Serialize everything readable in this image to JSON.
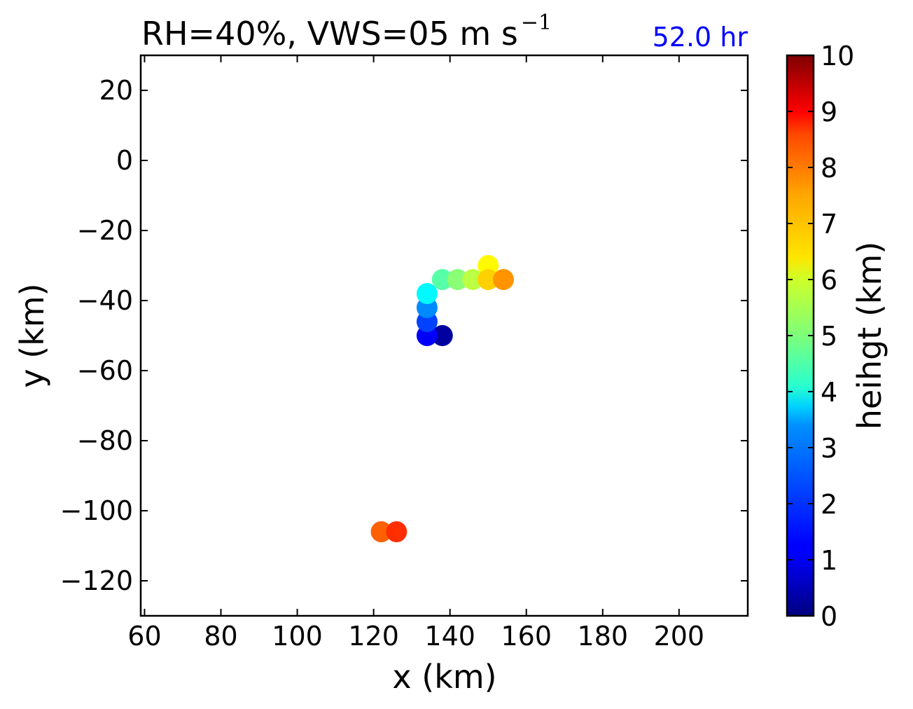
{
  "chart_data": {
    "type": "scatter",
    "title_main": "RH=40%, VWS=05 m s",
    "title_superscript": "−1",
    "time_label": "52.0 hr",
    "xlabel": "x (km)",
    "ylabel": "y (km)",
    "xlim": [
      59,
      218
    ],
    "ylim": [
      -130,
      30
    ],
    "xticks": [
      60,
      80,
      100,
      120,
      140,
      160,
      180,
      200
    ],
    "yticks": [
      20,
      0,
      -20,
      -40,
      -60,
      -80,
      -100,
      -120
    ],
    "xtick_labels": [
      "60",
      "80",
      "100",
      "120",
      "140",
      "160",
      "180",
      "200"
    ],
    "ytick_labels": [
      "20",
      "0",
      "−20",
      "−40",
      "−60",
      "−80",
      "−100",
      "−120"
    ],
    "colorbar": {
      "label": "heihgt (km)",
      "colormap": "jet",
      "range": [
        0,
        10
      ],
      "ticks": [
        0,
        1,
        2,
        3,
        4,
        5,
        6,
        7,
        8,
        9,
        10
      ],
      "tick_labels": [
        "0",
        "1",
        "2",
        "3",
        "4",
        "5",
        "6",
        "7",
        "8",
        "9",
        "10"
      ]
    },
    "points": [
      {
        "x": 122,
        "y": -106,
        "z": 7.8
      },
      {
        "x": 126,
        "y": -106,
        "z": 8.3
      },
      {
        "x": 138,
        "y": -50,
        "z": 0.3
      },
      {
        "x": 134,
        "y": -50,
        "z": 1.2
      },
      {
        "x": 134,
        "y": -46,
        "z": 1.9
      },
      {
        "x": 134,
        "y": -42,
        "z": 2.6
      },
      {
        "x": 134,
        "y": -38,
        "z": 3.7
      },
      {
        "x": 138,
        "y": -34,
        "z": 4.6
      },
      {
        "x": 142,
        "y": -34,
        "z": 5.1
      },
      {
        "x": 146,
        "y": -34,
        "z": 5.6
      },
      {
        "x": 150,
        "y": -30,
        "z": 6.3
      },
      {
        "x": 150,
        "y": -34,
        "z": 6.7
      },
      {
        "x": 154,
        "y": -34,
        "z": 7.3
      }
    ]
  }
}
